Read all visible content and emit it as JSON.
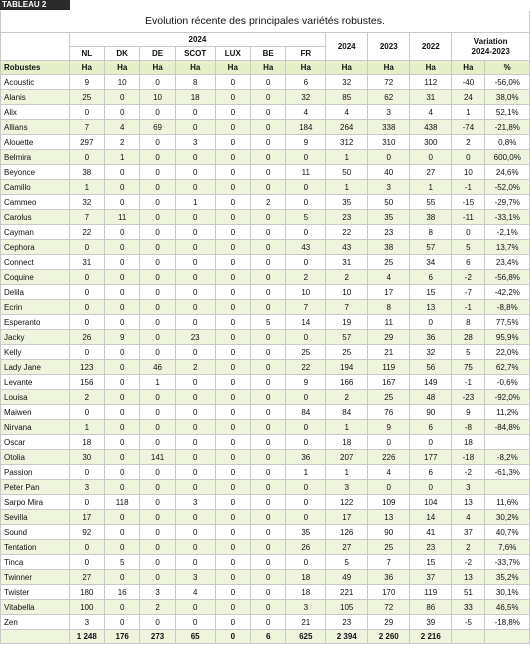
{
  "label": "TABLEAU 2",
  "title": "Evolution récente des principales variétés robustes.",
  "group_2024": "2024",
  "columns_2024": [
    "NL",
    "DK",
    "DE",
    "SCOT",
    "LUX",
    "BE",
    "FR"
  ],
  "col_2024": "2024",
  "col_2023": "2023",
  "col_2022": "2022",
  "variation_label": "Variation\n2024-2023",
  "row_header": "Robustes",
  "unit_ha": "Ha",
  "unit_pct": "%",
  "rows": [
    {
      "name": "Acoustic",
      "v": [
        "9",
        "10",
        "0",
        "8",
        "0",
        "0",
        "6",
        "32",
        "72",
        "112",
        "-40",
        "-56,0%"
      ]
    },
    {
      "name": "Alanis",
      "v": [
        "25",
        "0",
        "10",
        "18",
        "0",
        "0",
        "32",
        "85",
        "62",
        "31",
        "24",
        "38,0%"
      ]
    },
    {
      "name": "Alix",
      "v": [
        "0",
        "0",
        "0",
        "0",
        "0",
        "0",
        "4",
        "4",
        "3",
        "4",
        "1",
        "52,1%"
      ]
    },
    {
      "name": "Allians",
      "v": [
        "7",
        "4",
        "69",
        "0",
        "0",
        "0",
        "184",
        "264",
        "338",
        "438",
        "-74",
        "-21,8%"
      ]
    },
    {
      "name": "Alouette",
      "v": [
        "297",
        "2",
        "0",
        "3",
        "0",
        "0",
        "9",
        "312",
        "310",
        "300",
        "2",
        "0,8%"
      ]
    },
    {
      "name": "Belmira",
      "v": [
        "0",
        "1",
        "0",
        "0",
        "0",
        "0",
        "0",
        "1",
        "0",
        "0",
        "0",
        "600,0%"
      ]
    },
    {
      "name": "Beyonce",
      "v": [
        "38",
        "0",
        "0",
        "0",
        "0",
        "0",
        "11",
        "50",
        "40",
        "27",
        "10",
        "24,6%"
      ]
    },
    {
      "name": "Camillo",
      "v": [
        "1",
        "0",
        "0",
        "0",
        "0",
        "0",
        "0",
        "1",
        "3",
        "1",
        "-1",
        "-52,0%"
      ]
    },
    {
      "name": "Cammeo",
      "v": [
        "32",
        "0",
        "0",
        "1",
        "0",
        "2",
        "0",
        "35",
        "50",
        "55",
        "-15",
        "-29,7%"
      ]
    },
    {
      "name": "Carolus",
      "v": [
        "7",
        "11",
        "0",
        "0",
        "0",
        "0",
        "5",
        "23",
        "35",
        "38",
        "-11",
        "-33,1%"
      ]
    },
    {
      "name": "Cayman",
      "v": [
        "22",
        "0",
        "0",
        "0",
        "0",
        "0",
        "0",
        "22",
        "23",
        "8",
        "0",
        "-2,1%"
      ]
    },
    {
      "name": "Cephora",
      "v": [
        "0",
        "0",
        "0",
        "0",
        "0",
        "0",
        "43",
        "43",
        "38",
        "57",
        "5",
        "13,7%"
      ]
    },
    {
      "name": "Connect",
      "v": [
        "31",
        "0",
        "0",
        "0",
        "0",
        "0",
        "0",
        "31",
        "25",
        "34",
        "6",
        "23,4%"
      ]
    },
    {
      "name": "Coquine",
      "v": [
        "0",
        "0",
        "0",
        "0",
        "0",
        "0",
        "2",
        "2",
        "4",
        "6",
        "-2",
        "-56,8%"
      ]
    },
    {
      "name": "Delila",
      "v": [
        "0",
        "0",
        "0",
        "0",
        "0",
        "0",
        "10",
        "10",
        "17",
        "15",
        "-7",
        "-42,2%"
      ]
    },
    {
      "name": "Ecrin",
      "v": [
        "0",
        "0",
        "0",
        "0",
        "0",
        "0",
        "7",
        "7",
        "8",
        "13",
        "-1",
        "-8,8%"
      ]
    },
    {
      "name": "Esperanto",
      "v": [
        "0",
        "0",
        "0",
        "0",
        "0",
        "5",
        "14",
        "19",
        "11",
        "0",
        "8",
        "77,5%"
      ]
    },
    {
      "name": "Jacky",
      "v": [
        "26",
        "9",
        "0",
        "23",
        "0",
        "0",
        "0",
        "57",
        "29",
        "36",
        "28",
        "95,9%"
      ]
    },
    {
      "name": "Kelly",
      "v": [
        "0",
        "0",
        "0",
        "0",
        "0",
        "0",
        "25",
        "25",
        "21",
        "32",
        "5",
        "22,0%"
      ]
    },
    {
      "name": "Lady Jane",
      "v": [
        "123",
        "0",
        "46",
        "2",
        "0",
        "0",
        "22",
        "194",
        "119",
        "56",
        "75",
        "62,7%"
      ]
    },
    {
      "name": "Levante",
      "v": [
        "156",
        "0",
        "1",
        "0",
        "0",
        "0",
        "9",
        "166",
        "167",
        "149",
        "-1",
        "-0,6%"
      ]
    },
    {
      "name": "Louisa",
      "v": [
        "2",
        "0",
        "0",
        "0",
        "0",
        "0",
        "0",
        "2",
        "25",
        "48",
        "-23",
        "-92,0%"
      ]
    },
    {
      "name": "Maiwen",
      "v": [
        "0",
        "0",
        "0",
        "0",
        "0",
        "0",
        "84",
        "84",
        "76",
        "90",
        "9",
        "11,2%"
      ]
    },
    {
      "name": "Nirvana",
      "v": [
        "1",
        "0",
        "0",
        "0",
        "0",
        "0",
        "0",
        "1",
        "9",
        "6",
        "-8",
        "-84,8%"
      ]
    },
    {
      "name": "Oscar",
      "v": [
        "18",
        "0",
        "0",
        "0",
        "0",
        "0",
        "0",
        "18",
        "0",
        "0",
        "18",
        ""
      ]
    },
    {
      "name": "Otolia",
      "v": [
        "30",
        "0",
        "141",
        "0",
        "0",
        "0",
        "36",
        "207",
        "226",
        "177",
        "-18",
        "-8,2%"
      ]
    },
    {
      "name": "Passion",
      "v": [
        "0",
        "0",
        "0",
        "0",
        "0",
        "0",
        "1",
        "1",
        "4",
        "6",
        "-2",
        "-61,3%"
      ]
    },
    {
      "name": "Peter Pan",
      "v": [
        "3",
        "0",
        "0",
        "0",
        "0",
        "0",
        "0",
        "3",
        "0",
        "0",
        "3",
        ""
      ]
    },
    {
      "name": "Sarpo Mira",
      "v": [
        "0",
        "118",
        "0",
        "3",
        "0",
        "0",
        "0",
        "122",
        "109",
        "104",
        "13",
        "11,6%"
      ]
    },
    {
      "name": "Sevilla",
      "v": [
        "17",
        "0",
        "0",
        "0",
        "0",
        "0",
        "0",
        "17",
        "13",
        "14",
        "4",
        "30,2%"
      ]
    },
    {
      "name": "Sound",
      "v": [
        "92",
        "0",
        "0",
        "0",
        "0",
        "0",
        "35",
        "126",
        "90",
        "41",
        "37",
        "40,7%"
      ]
    },
    {
      "name": "Tentation",
      "v": [
        "0",
        "0",
        "0",
        "0",
        "0",
        "0",
        "26",
        "27",
        "25",
        "23",
        "2",
        "7,6%"
      ]
    },
    {
      "name": "Tinca",
      "v": [
        "0",
        "5",
        "0",
        "0",
        "0",
        "0",
        "0",
        "5",
        "7",
        "15",
        "-2",
        "-33,7%"
      ]
    },
    {
      "name": "Twinner",
      "v": [
        "27",
        "0",
        "0",
        "3",
        "0",
        "0",
        "18",
        "49",
        "36",
        "37",
        "13",
        "35,2%"
      ]
    },
    {
      "name": "Twister",
      "v": [
        "180",
        "16",
        "3",
        "4",
        "0",
        "0",
        "18",
        "221",
        "170",
        "119",
        "51",
        "30,1%"
      ]
    },
    {
      "name": "Vitabella",
      "v": [
        "100",
        "0",
        "2",
        "0",
        "0",
        "0",
        "3",
        "105",
        "72",
        "86",
        "33",
        "46,5%"
      ]
    },
    {
      "name": "Zen",
      "v": [
        "3",
        "0",
        "0",
        "0",
        "0",
        "0",
        "21",
        "23",
        "29",
        "39",
        "-5",
        "-18,8%"
      ]
    }
  ],
  "totals": [
    "1 248",
    "176",
    "273",
    "65",
    "0",
    "6",
    "625",
    "2 394",
    "2 260",
    "2 216",
    "",
    ""
  ],
  "colors": {
    "accent_bg": "#e6f0c8",
    "alt_row_bg": "#eef5dc",
    "grid": "#c9c9c9",
    "label_bg": "#2a2a2a"
  }
}
